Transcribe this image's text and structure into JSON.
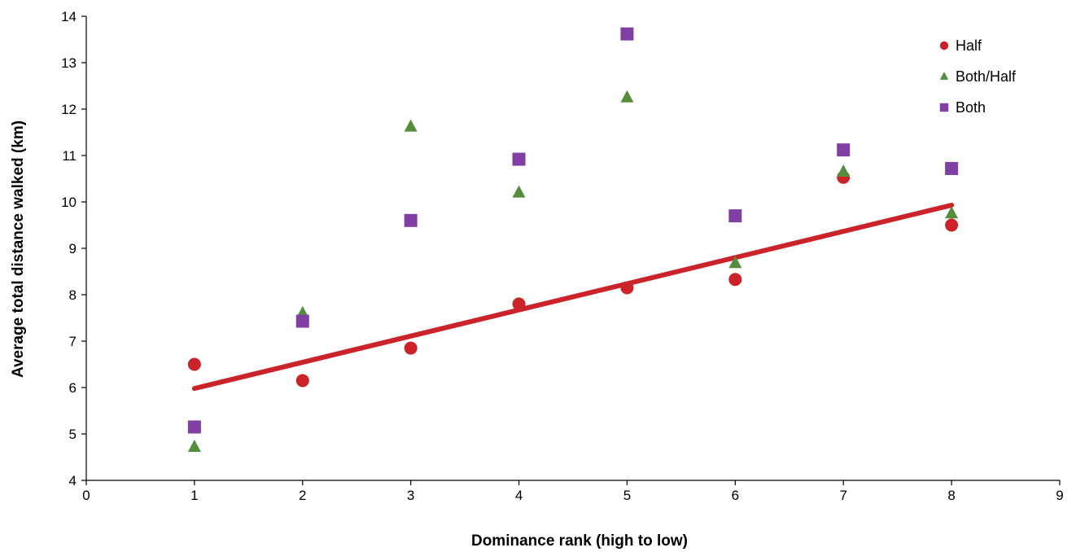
{
  "chart_data": {
    "type": "scatter",
    "title": "",
    "xlabel": "Dominance rank (high to low)",
    "ylabel": "Average total distance walked (km)",
    "xlim": [
      0,
      9
    ],
    "ylim": [
      4,
      14
    ],
    "xticks": [
      "0",
      "1",
      "2",
      "3",
      "4",
      "5",
      "6",
      "7",
      "8",
      "9"
    ],
    "yticks": [
      "4",
      "5",
      "6",
      "7",
      "8",
      "9",
      "10",
      "11",
      "12",
      "13",
      "14"
    ],
    "grid": false,
    "legend_position": "top-right",
    "series": [
      {
        "name": "Half",
        "marker": "circle",
        "color": "#cc2229",
        "x": [
          1,
          2,
          3,
          4,
          5,
          6,
          7,
          8
        ],
        "y": [
          6.5,
          6.15,
          6.85,
          7.8,
          8.15,
          8.33,
          10.53,
          9.5
        ]
      },
      {
        "name": "Both/Half",
        "marker": "triangle",
        "color": "#548d3c",
        "x": [
          1,
          2,
          3,
          4,
          5,
          6,
          7,
          8
        ],
        "y": [
          4.72,
          7.6,
          11.62,
          10.2,
          12.25,
          8.68,
          10.65,
          9.75
        ]
      },
      {
        "name": "Both",
        "marker": "square",
        "color": "#7f3fa3",
        "x": [
          1,
          2,
          3,
          4,
          5,
          6,
          7,
          8
        ],
        "y": [
          5.15,
          7.43,
          9.6,
          10.92,
          13.62,
          9.7,
          11.12,
          10.72
        ]
      }
    ],
    "trendline": {
      "series": "Half",
      "color": "#cc2229",
      "x": [
        1,
        8
      ],
      "y": [
        5.98,
        9.93
      ]
    }
  }
}
